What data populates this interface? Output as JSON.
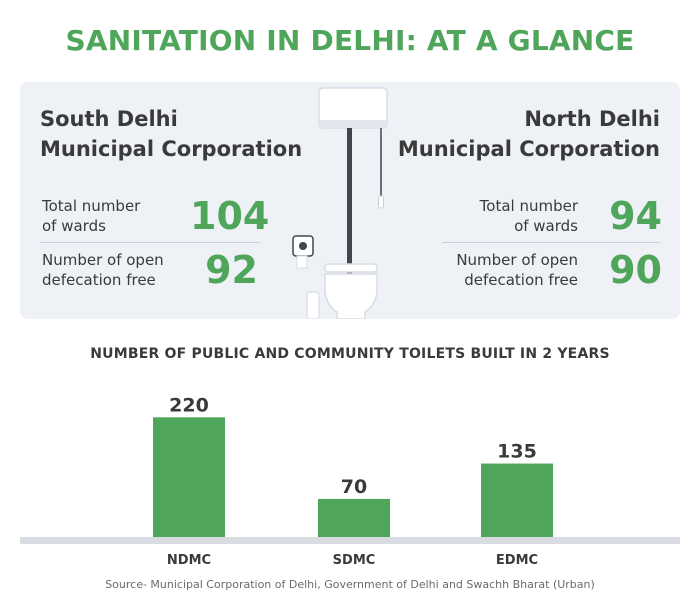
{
  "title": "SANITATION IN DELHI: AT A GLANCE",
  "south": {
    "name_line1": "South Delhi",
    "name_line2": "Municipal Corporation",
    "wards_label_line1": "Total number",
    "wards_label_line2": "of wards",
    "wards_value": "104",
    "odf_label_line1": "Number of open",
    "odf_label_line2": "defecation free",
    "odf_value": "92"
  },
  "north": {
    "name_line1": "North Delhi",
    "name_line2": "Municipal Corporation",
    "wards_label_line1": "Total number",
    "wards_label_line2": "of wards",
    "wards_value": "94",
    "odf_label_line1": "Number of open",
    "odf_label_line2": "defecation free",
    "odf_value": "90"
  },
  "colors": {
    "accent": "#4fa65b",
    "panel": "#eef1f6",
    "text": "#3a3a3a",
    "baseline": "#d9dde3"
  },
  "illustration": {
    "icon": "toilet-icon"
  },
  "chart_data": {
    "type": "bar",
    "title": "NUMBER OF PUBLIC AND COMMUNITY TOILETS BUILT IN 2 YEARS",
    "categories": [
      "NDMC",
      "SDMC",
      "EDMC"
    ],
    "values": [
      220,
      70,
      135
    ],
    "value_labels": [
      "220",
      "70",
      "135"
    ],
    "ylim": [
      0,
      250
    ],
    "grid": false,
    "legend": "none"
  },
  "source": "Source- Municipal Corporation of Delhi, Government of Delhi and Swachh Bharat (Urban)"
}
